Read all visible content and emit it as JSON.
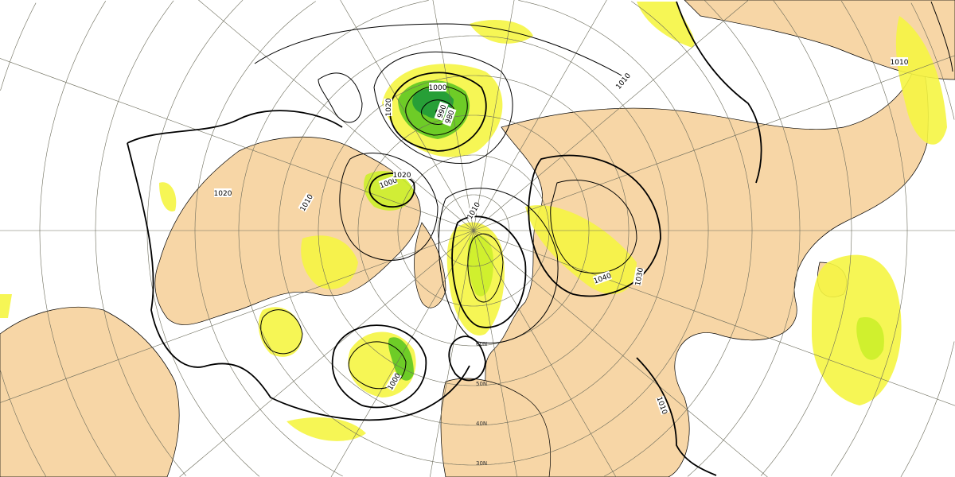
{
  "map": {
    "projection": "polar stereographic, northern hemisphere",
    "colors": {
      "land": "#f7d6a6",
      "ocean": "#ffffff",
      "precip_light": "#f5f542",
      "precip_mid": "#ccf02a",
      "precip_heavy": "#5fc822",
      "precip_very_heavy": "#1f9a3a",
      "isobar": "#000000",
      "graticule": "#6b6b5a"
    },
    "isobar_labels": [
      "1000",
      "990",
      "980",
      "1020",
      "1000",
      "1020",
      "1010",
      "1040",
      "1030",
      "1010",
      "1010",
      "1000",
      "1020",
      "1010",
      "1010"
    ],
    "latitude_labels": [
      "30N",
      "40N",
      "50N",
      "60N"
    ]
  }
}
